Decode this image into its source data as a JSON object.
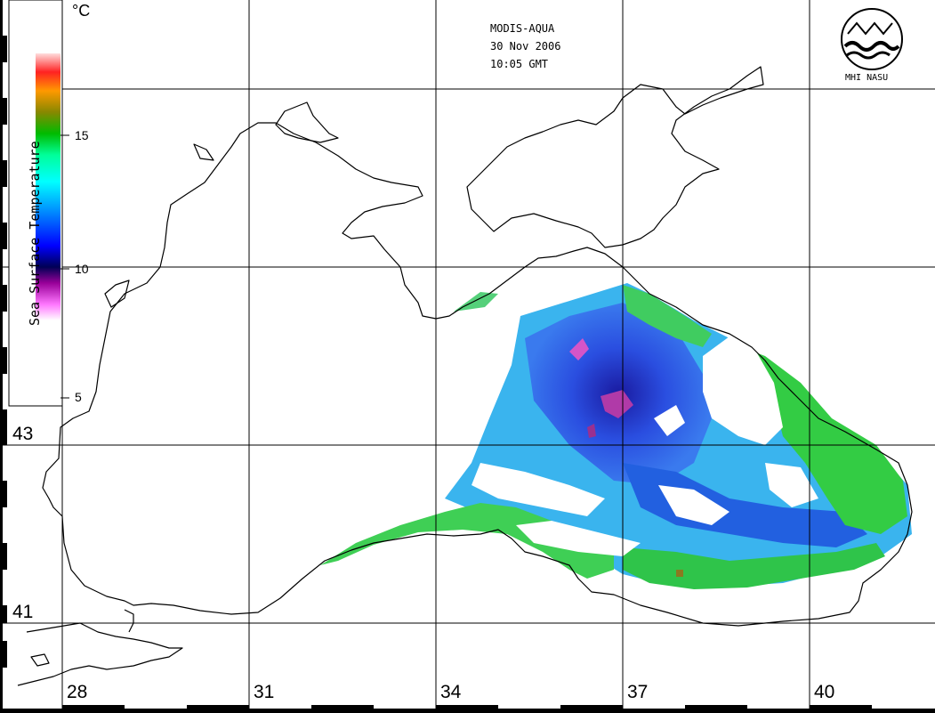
{
  "title": {
    "sensor": "MODIS-AQUA",
    "date": "30 Nov 2006",
    "time": "10:05 GMT"
  },
  "colorbar": {
    "title": "Sea Surface Temperature",
    "unit": "°C",
    "ticks": [
      {
        "label": "15",
        "value": 15
      },
      {
        "label": "10",
        "value": 10
      },
      {
        "label": "5",
        "value": 5
      }
    ],
    "range": [
      5,
      18
    ],
    "stops": [
      "#ffffff",
      "#ff55ff",
      "#8800aa",
      "#000066",
      "#0000ff",
      "#0088ff",
      "#00ffff",
      "#00ff88",
      "#00cc00",
      "#888800",
      "#ff8800",
      "#ff0000",
      "#ffcccc"
    ]
  },
  "logo": {
    "label": "MHI NASU"
  },
  "grid": {
    "latitudes": [
      {
        "label": "43"
      },
      {
        "label": "41"
      }
    ],
    "longitudes": [
      {
        "label": "28"
      },
      {
        "label": "31"
      },
      {
        "label": "34"
      },
      {
        "label": "37"
      },
      {
        "label": "40"
      }
    ]
  },
  "colors": {
    "coastline": "#000000",
    "gridline": "#000000",
    "land": "#ffffff",
    "sst_cool": "#1a3cd8",
    "sst_mid": "#35b8f0",
    "sst_warm": "#33cc33",
    "sst_coldspot": "#cc44aa"
  }
}
